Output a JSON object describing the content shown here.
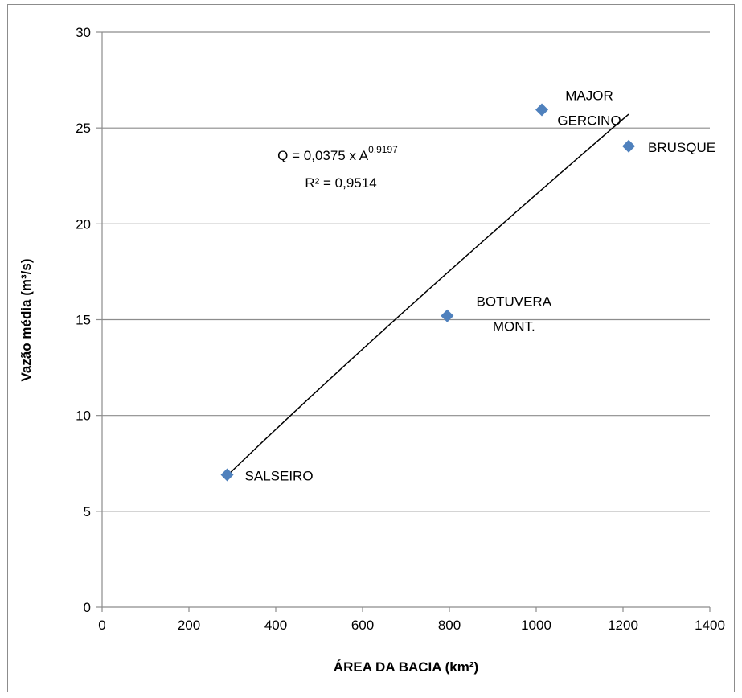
{
  "chart_data": {
    "type": "scatter",
    "xlabel": "ÁREA DA BACIA (km²)",
    "ylabel": "Vazão média (m³/s)",
    "xlim": [
      0,
      1400
    ],
    "ylim": [
      0,
      30
    ],
    "x_ticks": [
      "0",
      "200",
      "400",
      "600",
      "800",
      "1000",
      "1200",
      "1400"
    ],
    "y_ticks": [
      "0",
      "5",
      "10",
      "15",
      "20",
      "25",
      "30"
    ],
    "grid": "horizontal",
    "marker_color": "#4F81BD",
    "points": [
      {
        "x": 288,
        "y": 6.9,
        "label_lines": [
          "SALSEIRO"
        ]
      },
      {
        "x": 795,
        "y": 15.2,
        "label_lines": [
          "BOTUVERA",
          "MONT."
        ]
      },
      {
        "x": 1013,
        "y": 25.95,
        "label_lines": [
          "MAJOR",
          "GERCINO"
        ]
      },
      {
        "x": 1213,
        "y": 24.05,
        "label_lines": [
          "BRUSQUE"
        ]
      }
    ],
    "trendline": {
      "type": "power",
      "coefficient": 0.0375,
      "exponent": 0.9197,
      "x_range": [
        288,
        1213
      ],
      "equation_text": "Q = 0,0375 x A",
      "exponent_text": "0,9197",
      "r2_text": "R² = 0,9514"
    }
  }
}
